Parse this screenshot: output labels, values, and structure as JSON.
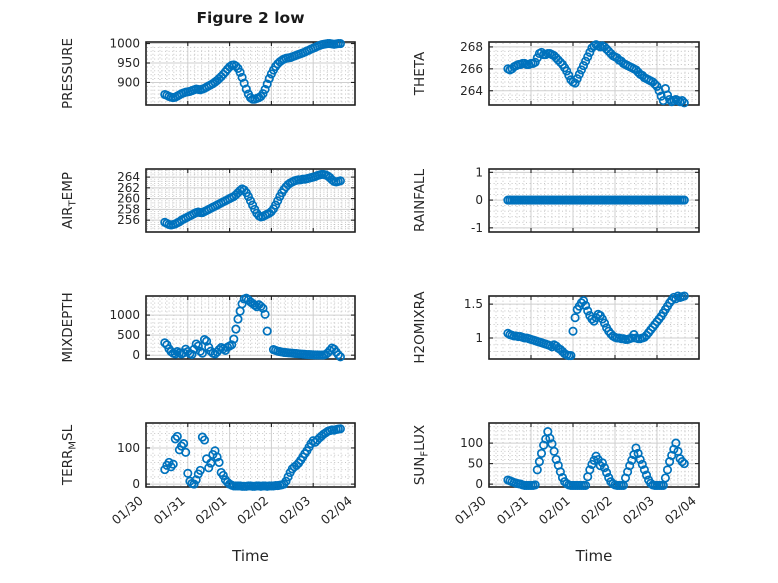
{
  "figure": {
    "title": "Figure 2 low",
    "xlabel": "Time",
    "x_tick_labels": [
      "01/30",
      "01/31",
      "02/01",
      "02/02",
      "02/03",
      "02/04"
    ],
    "xlim_days": [
      0,
      5
    ],
    "colors": {
      "marker": "#0072BD",
      "axis": "#202020",
      "text": "#262626",
      "grid": "#cfcfcf",
      "minor_grid": "#bdbdbd"
    }
  },
  "common_x_days": [
    0.45,
    0.5,
    0.55,
    0.6,
    0.65,
    0.7,
    0.75,
    0.8,
    0.85,
    0.9,
    0.95,
    1,
    1.05,
    1.1,
    1.15,
    1.2,
    1.25,
    1.3,
    1.35,
    1.4,
    1.45,
    1.5,
    1.55,
    1.6,
    1.65,
    1.7,
    1.75,
    1.8,
    1.85,
    1.9,
    1.95,
    2,
    2.05,
    2.1,
    2.15,
    2.2,
    2.25,
    2.3,
    2.35,
    2.4,
    2.45,
    2.5,
    2.55,
    2.6,
    2.65,
    2.7,
    2.75,
    2.8,
    2.85,
    2.9,
    2.95,
    3,
    3.05,
    3.1,
    3.15,
    3.2,
    3.25,
    3.3,
    3.35,
    3.4,
    3.45,
    3.5,
    3.55,
    3.6,
    3.65,
    3.7,
    3.75,
    3.8,
    3.85,
    3.9,
    3.95,
    4,
    4.05,
    4.1,
    4.15,
    4.2,
    4.25,
    4.3,
    4.35,
    4.4,
    4.45,
    4.5,
    4.55,
    4.6,
    4.65
  ],
  "chart_data": [
    {
      "type": "scatter",
      "name": "PRESSURE",
      "ylabel": [
        {
          "text": "PRESSURE"
        }
      ],
      "yticks": [
        900,
        950,
        1000
      ],
      "ylim": [
        842,
        1004
      ],
      "x": "common",
      "y": [
        869,
        867,
        864,
        862,
        861,
        862,
        865,
        868,
        871,
        873,
        875,
        876,
        877,
        879,
        881,
        883,
        882,
        881,
        883,
        885,
        888,
        891,
        894,
        897,
        901,
        905,
        910,
        915,
        921,
        927,
        934,
        940,
        944,
        945,
        942,
        936,
        926,
        913,
        898,
        883,
        870,
        861,
        857,
        857,
        859,
        861,
        864,
        871,
        882,
        896,
        910,
        922,
        932,
        941,
        948,
        953,
        957,
        960,
        962,
        963,
        964,
        966,
        968,
        970,
        972,
        974,
        976,
        978,
        981,
        983,
        986,
        988,
        990,
        993,
        995,
        997,
        998,
        999,
        1000,
        1000,
        999,
        998,
        999,
        1000,
        1000
      ]
    },
    {
      "type": "scatter",
      "name": "THETA",
      "ylabel": [
        {
          "text": "THETA"
        }
      ],
      "yticks": [
        264,
        266,
        268
      ],
      "ylim": [
        262.7,
        268.45
      ],
      "x": "common",
      "y": [
        266.0,
        265.9,
        266.0,
        266.2,
        266.3,
        266.4,
        266.4,
        266.5,
        266.5,
        266.4,
        266.4,
        266.5,
        266.5,
        266.6,
        267.0,
        267.4,
        267.5,
        267.3,
        267.3,
        267.4,
        267.4,
        267.3,
        267.2,
        267.0,
        266.8,
        266.6,
        266.4,
        266.1,
        265.8,
        265.4,
        265.0,
        264.8,
        264.7,
        265.1,
        265.5,
        265.9,
        266.3,
        266.7,
        267.1,
        267.5,
        267.9,
        268.1,
        268.2,
        268.1,
        268.0,
        268.1,
        268.0,
        267.8,
        267.6,
        267.4,
        267.2,
        267.1,
        267.0,
        266.8,
        266.7,
        266.5,
        266.4,
        266.3,
        266.2,
        266.1,
        266.0,
        265.9,
        265.7,
        265.5,
        265.4,
        265.2,
        265.1,
        265.0,
        264.9,
        264.8,
        264.6,
        264.4,
        264.0,
        263.5,
        263.1,
        264.2,
        263.6,
        263.2,
        263.0,
        263.1,
        263.2,
        263.1,
        263.0,
        263.1,
        262.9
      ]
    },
    {
      "type": "scatter",
      "name": "AIR_TEMP",
      "ylabel": [
        {
          "text": "AIR"
        },
        {
          "text": "T",
          "sub": true
        },
        {
          "text": "EMP"
        }
      ],
      "yticks": [
        256,
        258,
        260,
        262,
        264
      ],
      "ylim": [
        253.8,
        265.5
      ],
      "x": "common",
      "y": [
        255.6,
        255.4,
        255.2,
        255.1,
        255.2,
        255.3,
        255.5,
        255.7,
        256.0,
        256.2,
        256.4,
        256.6,
        256.8,
        257.0,
        257.2,
        257.4,
        257.5,
        257.4,
        257.4,
        257.6,
        257.8,
        258.0,
        258.2,
        258.4,
        258.6,
        258.8,
        259.0,
        259.2,
        259.4,
        259.6,
        259.8,
        260.0,
        260.2,
        260.4,
        260.7,
        261.1,
        261.5,
        261.8,
        261.6,
        261.1,
        260.4,
        259.6,
        258.8,
        258.0,
        257.3,
        256.8,
        256.6,
        256.7,
        256.9,
        257.1,
        257.3,
        257.6,
        258.1,
        258.8,
        259.6,
        260.4,
        261.1,
        261.7,
        262.2,
        262.6,
        262.9,
        263.1,
        263.3,
        263.4,
        263.5,
        263.5,
        263.6,
        263.6,
        263.7,
        263.8,
        263.9,
        264.0,
        264.1,
        264.3,
        264.4,
        264.5,
        264.5,
        264.4,
        264.2,
        263.9,
        263.5,
        263.2,
        263.1,
        263.2,
        263.3
      ]
    },
    {
      "type": "scatter",
      "name": "RAINFALL",
      "ylabel": [
        {
          "text": "RAINFALL"
        }
      ],
      "yticks": [
        -1,
        0,
        1
      ],
      "ylim": [
        -1.15,
        1.12
      ],
      "x": "common",
      "y": [
        0,
        0,
        0,
        0,
        0,
        0,
        0,
        0,
        0,
        0,
        0,
        0,
        0,
        0,
        0,
        0,
        0,
        0,
        0,
        0,
        0,
        0,
        0,
        0,
        0,
        0,
        0,
        0,
        0,
        0,
        0,
        0,
        0,
        0,
        0,
        0,
        0,
        0,
        0,
        0,
        0,
        0,
        0,
        0,
        0,
        0,
        0,
        0,
        0,
        0,
        0,
        0,
        0,
        0,
        0,
        0,
        0,
        0,
        0,
        0,
        0,
        0,
        0,
        0,
        0,
        0,
        0,
        0,
        0,
        0,
        0,
        0,
        0,
        0,
        0,
        0,
        0,
        0,
        0,
        0,
        0,
        0,
        0,
        0,
        0
      ]
    },
    {
      "type": "scatter",
      "name": "MIXDEPTH",
      "ylabel": [
        {
          "text": "MIXDEPTH"
        }
      ],
      "yticks": [
        0,
        500,
        1000
      ],
      "ylim": [
        -95,
        1476
      ],
      "x": [
        0.45,
        0.5,
        0.55,
        0.6,
        0.65,
        0.7,
        0.75,
        0.8,
        0.85,
        0.9,
        0.95,
        1,
        1.05,
        1.1,
        1.15,
        1.2,
        1.25,
        1.3,
        1.35,
        1.4,
        1.45,
        1.5,
        1.55,
        1.6,
        1.65,
        1.7,
        1.75,
        1.8,
        1.85,
        1.9,
        1.95,
        2,
        2.05,
        2.1,
        2.15,
        2.2,
        2.25,
        2.3,
        2.35,
        2.4,
        2.45,
        2.5,
        2.55,
        2.6,
        2.65,
        2.7,
        2.75,
        2.8,
        2.85,
        2.9,
        3.05,
        3.1,
        3.15,
        3.2,
        3.25,
        3.3,
        3.35,
        3.4,
        3.45,
        3.5,
        3.55,
        3.6,
        3.65,
        3.7,
        3.75,
        3.8,
        3.85,
        3.9,
        3.95,
        4,
        4.05,
        4.1,
        4.15,
        4.2,
        4.25,
        4.3,
        4.35,
        4.4,
        4.45,
        4.5,
        4.55,
        4.6,
        4.65
      ],
      "y": [
        310,
        260,
        160,
        90,
        50,
        30,
        90,
        60,
        30,
        60,
        150,
        90,
        40,
        20,
        150,
        280,
        230,
        100,
        50,
        390,
        350,
        200,
        100,
        50,
        30,
        80,
        140,
        190,
        160,
        120,
        200,
        230,
        260,
        400,
        650,
        900,
        1100,
        1280,
        1400,
        1420,
        1380,
        1330,
        1290,
        1250,
        1210,
        1260,
        1220,
        1170,
        1020,
        600,
        140,
        120,
        100,
        90,
        80,
        70,
        65,
        60,
        55,
        50,
        45,
        40,
        35,
        30,
        25,
        22,
        18,
        15,
        12,
        10,
        8,
        6,
        5,
        5,
        8,
        20,
        60,
        120,
        180,
        150,
        80,
        10,
        -40
      ]
    },
    {
      "type": "scatter",
      "name": "H2OMIXRA",
      "ylabel": [
        {
          "text": "H2OMIXRA"
        }
      ],
      "yticks": [
        1,
        1.5
      ],
      "ylim": [
        0.69,
        1.62
      ],
      "x": "common",
      "y": [
        1.07,
        1.05,
        1.04,
        1.03,
        1.03,
        1.02,
        1.02,
        1.01,
        1.0,
        1.0,
        0.99,
        0.98,
        0.97,
        0.96,
        0.95,
        0.94,
        0.93,
        0.92,
        0.91,
        0.9,
        0.89,
        0.87,
        0.9,
        0.88,
        0.85,
        0.83,
        0.8,
        0.77,
        0.75,
        0.74,
        0.74,
        1.1,
        1.3,
        1.42,
        1.47,
        1.52,
        1.55,
        1.48,
        1.4,
        1.33,
        1.28,
        1.25,
        1.3,
        1.35,
        1.33,
        1.28,
        1.22,
        1.15,
        1.1,
        1.06,
        1.03,
        1.01,
        1.0,
        1.0,
        0.99,
        0.99,
        0.98,
        0.98,
        0.99,
        1.0,
        1.05,
        1.0,
        0.99,
        0.99,
        1.0,
        1.01,
        1.04,
        1.08,
        1.12,
        1.16,
        1.2,
        1.24,
        1.28,
        1.32,
        1.37,
        1.42,
        1.47,
        1.52,
        1.56,
        1.6,
        1.58,
        1.62,
        1.6,
        1.61,
        1.62
      ]
    },
    {
      "type": "scatter",
      "name": "TERR_MSL",
      "ylabel": [
        {
          "text": "TERR"
        },
        {
          "text": "M",
          "sub": true
        },
        {
          "text": "SL"
        }
      ],
      "yticks": [
        0,
        100
      ],
      "ylim": [
        -8,
        169
      ],
      "x": "common",
      "y": [
        40,
        52,
        60,
        48,
        55,
        125,
        132,
        95,
        105,
        112,
        88,
        30,
        8,
        2,
        0,
        12,
        28,
        38,
        130,
        122,
        70,
        45,
        58,
        82,
        92,
        75,
        60,
        32,
        24,
        12,
        5,
        0,
        -3,
        -5,
        -5,
        -5,
        -5,
        -6,
        -6,
        -6,
        -5,
        -5,
        -6,
        -6,
        -5,
        -5,
        -6,
        -5,
        -5,
        -6,
        -5,
        -5,
        -5,
        -4,
        -4,
        -3,
        -2,
        0,
        8,
        20,
        32,
        42,
        48,
        52,
        58,
        66,
        75,
        84,
        92,
        102,
        112,
        120,
        116,
        122,
        128,
        133,
        138,
        142,
        146,
        148,
        150,
        149,
        151,
        152,
        153
      ]
    },
    {
      "type": "scatter",
      "name": "SUN_FLUX",
      "ylabel": [
        {
          "text": "SUN"
        },
        {
          "text": "F",
          "sub": true
        },
        {
          "text": "LUX"
        }
      ],
      "yticks": [
        0,
        50,
        100
      ],
      "ylim": [
        -7,
        149
      ],
      "x": "common",
      "y": [
        10,
        8,
        6,
        4,
        2,
        1,
        0,
        -2,
        -3,
        -3,
        -3,
        -3,
        -3,
        -2,
        35,
        55,
        75,
        95,
        110,
        128,
        112,
        98,
        80,
        60,
        46,
        30,
        16,
        6,
        1,
        -2,
        -3,
        -3,
        -3,
        -3,
        -3,
        -3,
        -3,
        -3,
        18,
        35,
        48,
        58,
        68,
        60,
        45,
        52,
        40,
        28,
        16,
        6,
        1,
        -2,
        -3,
        -3,
        -3,
        -3,
        15,
        30,
        45,
        58,
        72,
        88,
        75,
        60,
        48,
        35,
        22,
        10,
        2,
        -2,
        -3,
        -3,
        -3,
        -3,
        -3,
        15,
        35,
        55,
        70,
        85,
        100,
        80,
        62,
        55,
        50
      ]
    }
  ]
}
